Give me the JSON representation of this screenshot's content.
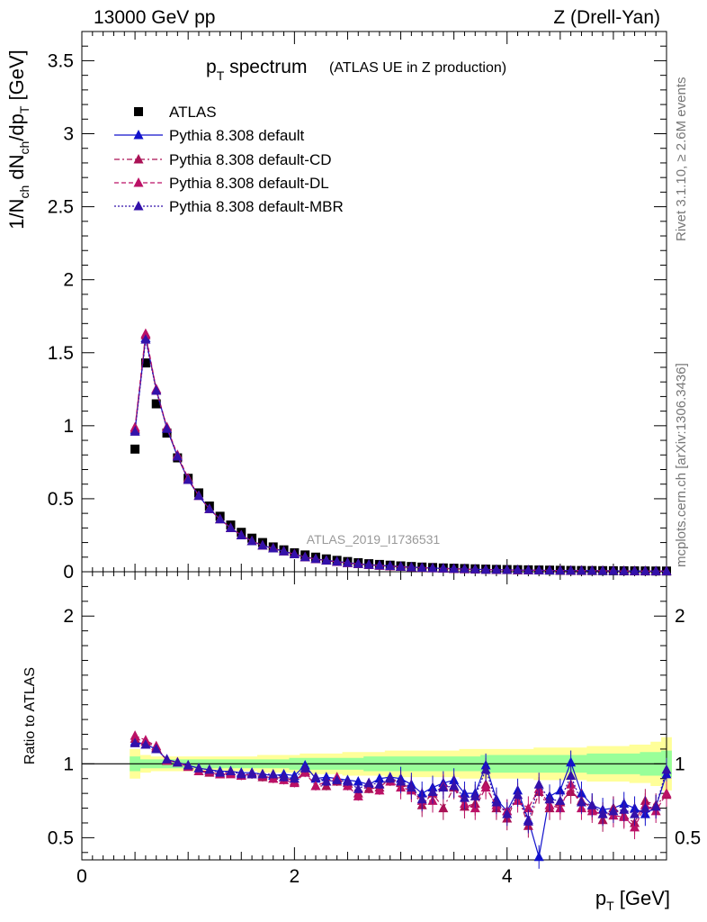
{
  "header": {
    "left": "13000 GeV pp",
    "right": "Z (Drell-Yan)"
  },
  "side_labels": {
    "rivet": "Rivet 3.1.10, ≥ 2.6M events",
    "mcplots": "mcplots.cern.ch [arXiv:1306.3436]"
  },
  "chart_data": [
    {
      "type": "line",
      "panel": "main",
      "title_main": "p",
      "title_sub": "T",
      "title_rest": " spectrum",
      "title_note": "(ATLAS UE in Z production)",
      "watermark": "ATLAS_2019_I1736531",
      "ylabel": "1/N_ch dN_ch/dp_T [GeV]",
      "xlim": [
        0,
        5.5
      ],
      "ylim": [
        0,
        3.7
      ],
      "y_ticks": [
        0,
        0.5,
        1,
        1.5,
        2,
        2.5,
        3,
        3.5
      ],
      "y_tick_labels": [
        "0",
        "0.5",
        "1",
        "1.5",
        "2",
        "2.5",
        "3",
        "3.5"
      ],
      "legend_position": "top-left",
      "x": [
        0.5,
        0.6,
        0.7,
        0.8,
        0.9,
        1.0,
        1.1,
        1.2,
        1.3,
        1.4,
        1.5,
        1.6,
        1.7,
        1.8,
        1.9,
        2.0,
        2.1,
        2.2,
        2.3,
        2.4,
        2.5,
        2.6,
        2.7,
        2.8,
        2.9,
        3.0,
        3.1,
        3.2,
        3.3,
        3.4,
        3.5,
        3.6,
        3.7,
        3.8,
        3.9,
        4.0,
        4.1,
        4.2,
        4.3,
        4.4,
        4.5,
        4.6,
        4.7,
        4.8,
        4.9,
        5.0,
        5.1,
        5.2,
        5.3,
        5.4,
        5.5
      ],
      "series": [
        {
          "name": "ATLAS",
          "style": "data",
          "color": "#000000",
          "values": [
            0.84,
            1.43,
            1.15,
            0.95,
            0.78,
            0.64,
            0.54,
            0.45,
            0.38,
            0.32,
            0.27,
            0.23,
            0.2,
            0.17,
            0.15,
            0.13,
            0.115,
            0.1,
            0.088,
            0.078,
            0.07,
            0.062,
            0.055,
            0.05,
            0.045,
            0.04,
            0.036,
            0.032,
            0.029,
            0.026,
            0.024,
            0.022,
            0.02,
            0.018,
            0.016,
            0.015,
            0.014,
            0.013,
            0.012,
            0.011,
            0.01,
            0.009,
            0.0085,
            0.008,
            0.0075,
            0.007,
            0.0065,
            0.006,
            0.0055,
            0.005,
            0.0048
          ]
        },
        {
          "name": "Pythia 8.308 default",
          "style": "solid",
          "color": "#1111cc",
          "values": [
            0.97,
            1.6,
            1.25,
            0.98,
            0.79,
            0.63,
            0.52,
            0.43,
            0.36,
            0.3,
            0.25,
            0.21,
            0.18,
            0.16,
            0.14,
            0.12,
            0.1,
            0.088,
            0.078,
            0.07,
            0.062,
            0.055,
            0.049,
            0.044,
            0.04,
            0.036,
            0.032,
            0.028,
            0.025,
            0.023,
            0.021,
            0.019,
            0.017,
            0.015,
            0.014,
            0.013,
            0.012,
            0.011,
            0.01,
            0.009,
            0.009,
            0.008,
            0.0075,
            0.007,
            0.0065,
            0.006,
            0.0055,
            0.005,
            0.0045,
            0.0045,
            0.004
          ]
        },
        {
          "name": "Pythia 8.308 default-CD",
          "style": "dashdot",
          "color": "#aa1155",
          "values": [
            0.98,
            1.62,
            1.24,
            0.99,
            0.79,
            0.63,
            0.52,
            0.43,
            0.36,
            0.3,
            0.25,
            0.21,
            0.18,
            0.16,
            0.14,
            0.12,
            0.1,
            0.087,
            0.076,
            0.068,
            0.06,
            0.053,
            0.047,
            0.042,
            0.038,
            0.034,
            0.03,
            0.027,
            0.024,
            0.022,
            0.02,
            0.018,
            0.016,
            0.015,
            0.013,
            0.012,
            0.011,
            0.01,
            0.0095,
            0.009,
            0.0085,
            0.008,
            0.0075,
            0.007,
            0.0065,
            0.006,
            0.0055,
            0.005,
            0.0045,
            0.004,
            0.004
          ]
        },
        {
          "name": "Pythia 8.308 default-DL",
          "style": "dashed",
          "color": "#bb1166",
          "values": [
            0.99,
            1.63,
            1.25,
            0.99,
            0.8,
            0.64,
            0.52,
            0.43,
            0.36,
            0.3,
            0.25,
            0.21,
            0.18,
            0.16,
            0.14,
            0.12,
            0.1,
            0.087,
            0.077,
            0.068,
            0.06,
            0.053,
            0.047,
            0.042,
            0.038,
            0.034,
            0.03,
            0.027,
            0.024,
            0.022,
            0.02,
            0.018,
            0.016,
            0.015,
            0.013,
            0.012,
            0.011,
            0.01,
            0.0095,
            0.009,
            0.0085,
            0.008,
            0.0075,
            0.007,
            0.0065,
            0.006,
            0.0055,
            0.005,
            0.0045,
            0.004,
            0.004
          ]
        },
        {
          "name": "Pythia 8.308 default-MBR",
          "style": "dotted",
          "color": "#3311aa",
          "values": [
            0.96,
            1.59,
            1.24,
            0.98,
            0.79,
            0.63,
            0.52,
            0.43,
            0.36,
            0.3,
            0.25,
            0.21,
            0.18,
            0.16,
            0.14,
            0.12,
            0.1,
            0.088,
            0.077,
            0.069,
            0.061,
            0.054,
            0.048,
            0.043,
            0.039,
            0.035,
            0.031,
            0.028,
            0.025,
            0.023,
            0.021,
            0.019,
            0.017,
            0.015,
            0.014,
            0.013,
            0.012,
            0.011,
            0.01,
            0.009,
            0.0085,
            0.008,
            0.0075,
            0.007,
            0.0065,
            0.006,
            0.0055,
            0.005,
            0.0045,
            0.0042,
            0.004
          ]
        }
      ]
    },
    {
      "type": "line",
      "panel": "ratio",
      "ylabel": "Ratio to ATLAS",
      "xlabel": "p_T [GeV]",
      "xlim": [
        0,
        5.5
      ],
      "ylim": [
        0.35,
        2.3
      ],
      "x_ticks": [
        0,
        2,
        4
      ],
      "x_tick_labels": [
        "0",
        "2",
        "4"
      ],
      "y_ticks": [
        0.5,
        1,
        2
      ],
      "y_tick_labels": [
        "0.5",
        "1",
        "2"
      ],
      "band_colors": {
        "inner": "#99ff99",
        "outer": "#ffff99"
      },
      "band_inner": [
        0.05,
        0.03,
        0.03,
        0.03,
        0.03,
        0.03,
        0.03,
        0.03,
        0.03,
        0.03,
        0.03,
        0.03,
        0.03,
        0.03,
        0.03,
        0.04,
        0.04,
        0.04,
        0.04,
        0.04,
        0.04,
        0.04,
        0.05,
        0.05,
        0.05,
        0.05,
        0.05,
        0.05,
        0.05,
        0.05,
        0.05,
        0.05,
        0.05,
        0.06,
        0.06,
        0.06,
        0.06,
        0.06,
        0.06,
        0.06,
        0.06,
        0.06,
        0.06,
        0.07,
        0.07,
        0.07,
        0.07,
        0.07,
        0.08,
        0.08,
        0.09
      ],
      "band_outer": [
        0.1,
        0.06,
        0.05,
        0.05,
        0.05,
        0.05,
        0.05,
        0.05,
        0.05,
        0.05,
        0.05,
        0.05,
        0.06,
        0.06,
        0.06,
        0.06,
        0.07,
        0.07,
        0.07,
        0.07,
        0.08,
        0.08,
        0.08,
        0.08,
        0.09,
        0.09,
        0.09,
        0.09,
        0.09,
        0.09,
        0.09,
        0.1,
        0.1,
        0.1,
        0.1,
        0.1,
        0.1,
        0.1,
        0.11,
        0.11,
        0.11,
        0.11,
        0.11,
        0.12,
        0.12,
        0.12,
        0.12,
        0.13,
        0.13,
        0.15,
        0.18
      ],
      "series": [
        {
          "name": "Pythia 8.308 default",
          "color": "#1111cc",
          "values": [
            1.15,
            1.13,
            1.1,
            1.03,
            1.01,
            0.99,
            0.97,
            0.96,
            0.95,
            0.95,
            0.94,
            0.94,
            0.93,
            0.92,
            0.93,
            0.92,
            0.99,
            0.9,
            0.91,
            0.9,
            0.89,
            0.88,
            0.86,
            0.9,
            0.91,
            0.9,
            0.86,
            0.8,
            0.84,
            0.87,
            0.89,
            0.8,
            0.8,
            0.99,
            0.76,
            0.68,
            0.82,
            0.62,
            0.37,
            0.78,
            0.82,
            1.01,
            0.8,
            0.72,
            0.69,
            0.7,
            0.73,
            0.7,
            0.66,
            0.71,
            0.93
          ]
        },
        {
          "name": "Pythia 8.308 default-CD",
          "color": "#aa1155",
          "values": [
            1.17,
            1.15,
            1.11,
            1.02,
            1.01,
            0.98,
            0.95,
            0.94,
            0.93,
            0.94,
            0.92,
            0.93,
            0.91,
            0.9,
            0.91,
            0.88,
            0.95,
            0.85,
            0.85,
            0.88,
            0.87,
            0.8,
            0.83,
            0.84,
            0.9,
            0.87,
            0.83,
            0.72,
            0.8,
            0.7,
            0.84,
            0.71,
            0.73,
            0.86,
            0.7,
            0.63,
            0.79,
            0.58,
            0.81,
            0.7,
            0.74,
            0.81,
            0.75,
            0.7,
            0.62,
            0.7,
            0.65,
            0.6,
            0.75,
            0.72,
            0.79
          ]
        },
        {
          "name": "Pythia 8.308 default-DL",
          "color": "#bb1166",
          "values": [
            1.19,
            1.16,
            1.12,
            1.02,
            1.01,
            0.98,
            0.95,
            0.95,
            0.93,
            0.93,
            0.92,
            0.93,
            0.92,
            0.9,
            0.89,
            0.87,
            0.94,
            0.85,
            0.88,
            0.91,
            0.85,
            0.78,
            0.87,
            0.82,
            0.88,
            0.84,
            0.82,
            0.75,
            0.75,
            0.85,
            0.85,
            0.73,
            0.7,
            0.84,
            0.72,
            0.68,
            0.75,
            0.7,
            0.83,
            0.72,
            0.7,
            0.86,
            0.7,
            0.68,
            0.66,
            0.65,
            0.64,
            0.57,
            0.72,
            0.68,
            0.8
          ]
        },
        {
          "name": "Pythia 8.308 default-MBR",
          "color": "#3311aa",
          "values": [
            1.14,
            1.13,
            1.1,
            1.03,
            1.01,
            0.99,
            0.97,
            0.96,
            0.94,
            0.95,
            0.93,
            0.93,
            0.93,
            0.93,
            0.91,
            0.9,
            0.97,
            0.91,
            0.88,
            0.89,
            0.88,
            0.83,
            0.87,
            0.86,
            0.9,
            0.88,
            0.84,
            0.76,
            0.81,
            0.84,
            0.85,
            0.77,
            0.78,
            0.96,
            0.74,
            0.66,
            0.79,
            0.61,
            0.86,
            0.76,
            0.75,
            0.92,
            0.74,
            0.72,
            0.66,
            0.68,
            0.69,
            0.66,
            0.7,
            0.71,
            0.96
          ]
        }
      ]
    }
  ]
}
